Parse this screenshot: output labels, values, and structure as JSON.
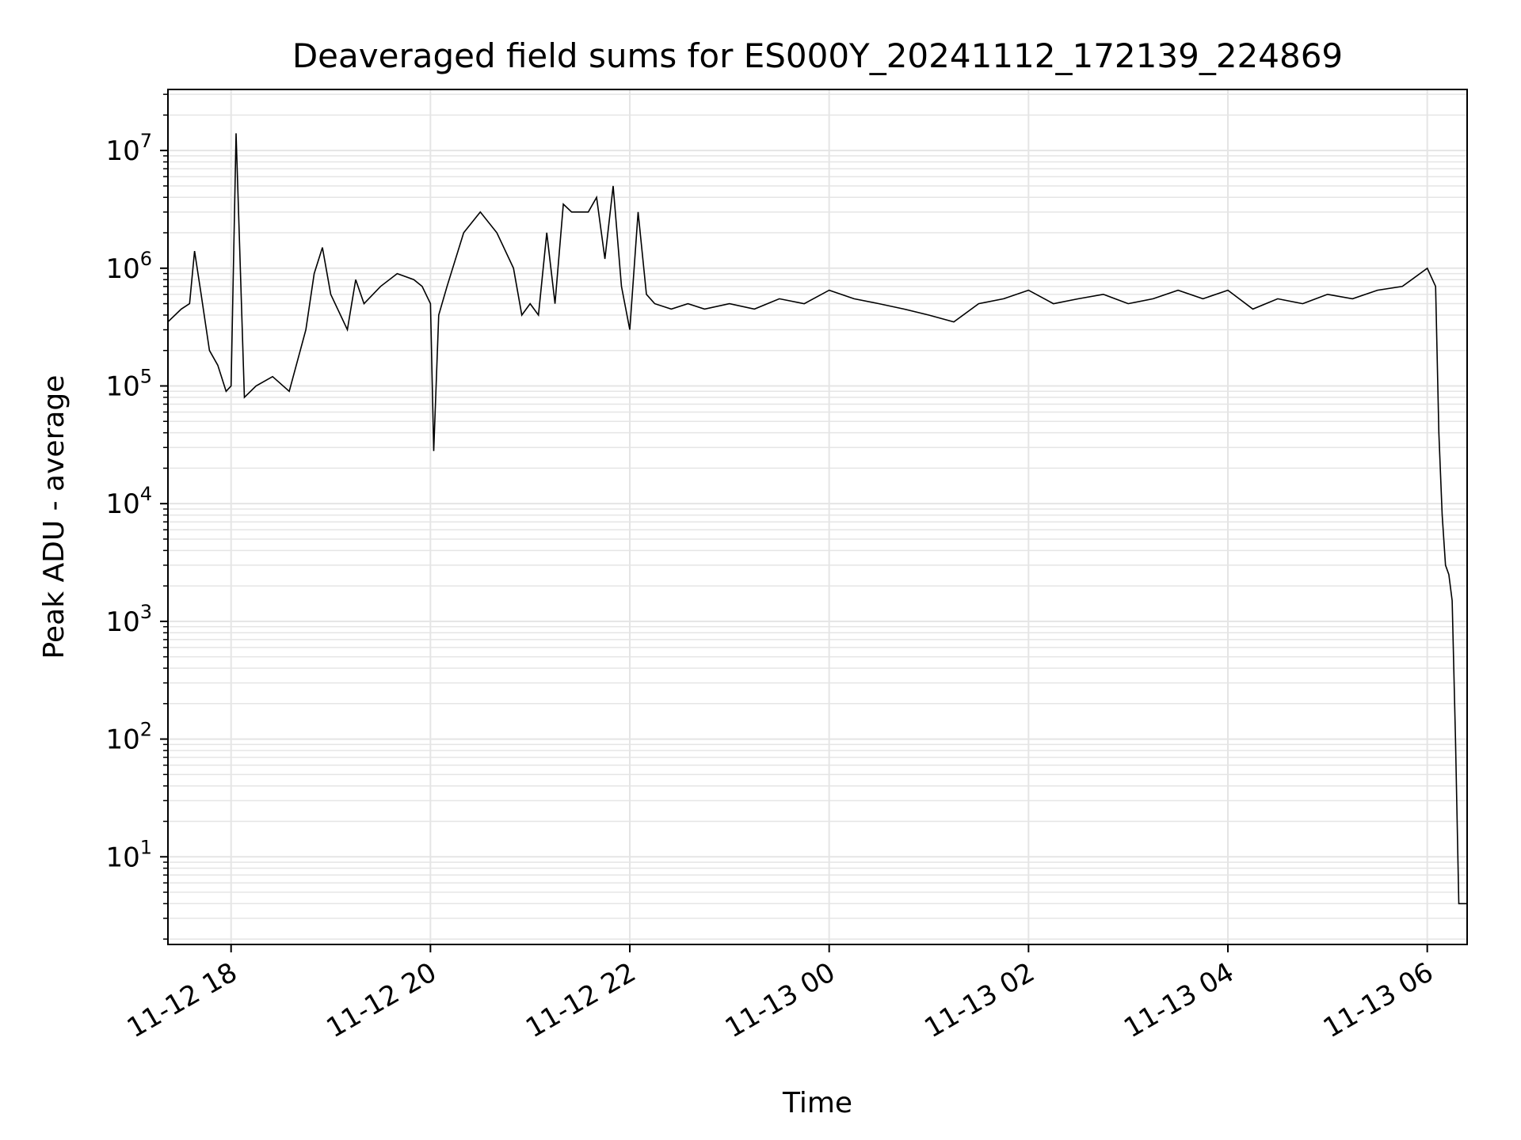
{
  "chart_data": {
    "type": "line",
    "title": "Deaveraged field sums for ES000Y_20241112_172139_224869",
    "xlabel": "Time",
    "ylabel": "Peak ADU - average",
    "yscale": "log",
    "ylim": [
      1.8,
      33000000
    ],
    "xlim": [
      "2024-11-12 17:22",
      "2024-11-13 06:24"
    ],
    "grid": true,
    "legend": "none",
    "line_color": "#000000",
    "grid_color": "#e5e5e5",
    "x_ticks": [
      {
        "t": "2024-11-12 18:00",
        "label": "11-12 18"
      },
      {
        "t": "2024-11-12 20:00",
        "label": "11-12 20"
      },
      {
        "t": "2024-11-12 22:00",
        "label": "11-12 22"
      },
      {
        "t": "2024-11-13 00:00",
        "label": "11-13 00"
      },
      {
        "t": "2024-11-13 02:00",
        "label": "11-13 02"
      },
      {
        "t": "2024-11-13 04:00",
        "label": "11-13 04"
      },
      {
        "t": "2024-11-13 06:00",
        "label": "11-13 06"
      }
    ],
    "y_ticks": [
      {
        "value": 10,
        "base": "10",
        "exp": "1"
      },
      {
        "value": 100,
        "base": "10",
        "exp": "2"
      },
      {
        "value": 1000,
        "base": "10",
        "exp": "3"
      },
      {
        "value": 10000,
        "base": "10",
        "exp": "4"
      },
      {
        "value": 100000,
        "base": "10",
        "exp": "5"
      },
      {
        "value": 1000000,
        "base": "10",
        "exp": "6"
      },
      {
        "value": 10000000,
        "base": "10",
        "exp": "7"
      }
    ],
    "series": [
      {
        "x": [
          "2024-11-12 17:22",
          "2024-11-12 17:30",
          "2024-11-12 17:35",
          "2024-11-12 17:38",
          "2024-11-12 17:42",
          "2024-11-12 17:47",
          "2024-11-12 17:52",
          "2024-11-12 17:57",
          "2024-11-12 18:00",
          "2024-11-12 18:03",
          "2024-11-12 18:08",
          "2024-11-12 18:15",
          "2024-11-12 18:25",
          "2024-11-12 18:35",
          "2024-11-12 18:45",
          "2024-11-12 18:50",
          "2024-11-12 18:55",
          "2024-11-12 19:00",
          "2024-11-12 19:10",
          "2024-11-12 19:15",
          "2024-11-12 19:20",
          "2024-11-12 19:30",
          "2024-11-12 19:40",
          "2024-11-12 19:50",
          "2024-11-12 19:55",
          "2024-11-12 20:00",
          "2024-11-12 20:02",
          "2024-11-12 20:05",
          "2024-11-12 20:10",
          "2024-11-12 20:20",
          "2024-11-12 20:30",
          "2024-11-12 20:40",
          "2024-11-12 20:50",
          "2024-11-12 20:55",
          "2024-11-12 21:00",
          "2024-11-12 21:05",
          "2024-11-12 21:10",
          "2024-11-12 21:15",
          "2024-11-12 21:20",
          "2024-11-12 21:25",
          "2024-11-12 21:35",
          "2024-11-12 21:40",
          "2024-11-12 21:45",
          "2024-11-12 21:50",
          "2024-11-12 21:55",
          "2024-11-12 22:00",
          "2024-11-12 22:05",
          "2024-11-12 22:10",
          "2024-11-12 22:15",
          "2024-11-12 22:25",
          "2024-11-12 22:35",
          "2024-11-12 22:45",
          "2024-11-12 23:00",
          "2024-11-12 23:15",
          "2024-11-12 23:30",
          "2024-11-12 23:45",
          "2024-11-13 00:00",
          "2024-11-13 00:15",
          "2024-11-13 00:30",
          "2024-11-13 00:45",
          "2024-11-13 01:00",
          "2024-11-13 01:15",
          "2024-11-13 01:30",
          "2024-11-13 01:45",
          "2024-11-13 02:00",
          "2024-11-13 02:15",
          "2024-11-13 02:30",
          "2024-11-13 02:45",
          "2024-11-13 03:00",
          "2024-11-13 03:15",
          "2024-11-13 03:30",
          "2024-11-13 03:45",
          "2024-11-13 04:00",
          "2024-11-13 04:15",
          "2024-11-13 04:30",
          "2024-11-13 04:45",
          "2024-11-13 05:00",
          "2024-11-13 05:15",
          "2024-11-13 05:30",
          "2024-11-13 05:45",
          "2024-11-13 06:00",
          "2024-11-13 06:05",
          "2024-11-13 06:07",
          "2024-11-13 06:09",
          "2024-11-13 06:11",
          "2024-11-13 06:13",
          "2024-11-13 06:15",
          "2024-11-13 06:17",
          "2024-11-13 06:19",
          "2024-11-13 06:21",
          "2024-11-13 06:24"
        ],
        "y": [
          350000,
          450000,
          500000,
          1400000,
          600000,
          200000,
          150000,
          90000,
          100000,
          14000000,
          80000,
          100000,
          120000,
          90000,
          300000,
          900000,
          1500000,
          600000,
          300000,
          800000,
          500000,
          700000,
          900000,
          800000,
          700000,
          500000,
          28000,
          400000,
          700000,
          2000000,
          3000000,
          2000000,
          1000000,
          400000,
          500000,
          400000,
          2000000,
          500000,
          3500000,
          3000000,
          3000000,
          4000000,
          1200000,
          5000000,
          700000,
          300000,
          3000000,
          600000,
          500000,
          450000,
          500000,
          450000,
          500000,
          450000,
          550000,
          500000,
          650000,
          550000,
          500000,
          450000,
          400000,
          350000,
          500000,
          550000,
          650000,
          500000,
          550000,
          600000,
          500000,
          550000,
          650000,
          550000,
          650000,
          450000,
          550000,
          500000,
          600000,
          550000,
          650000,
          700000,
          1000000,
          700000,
          40000,
          8000,
          3000,
          2500,
          1500,
          100,
          4,
          4,
          4
        ]
      }
    ]
  }
}
